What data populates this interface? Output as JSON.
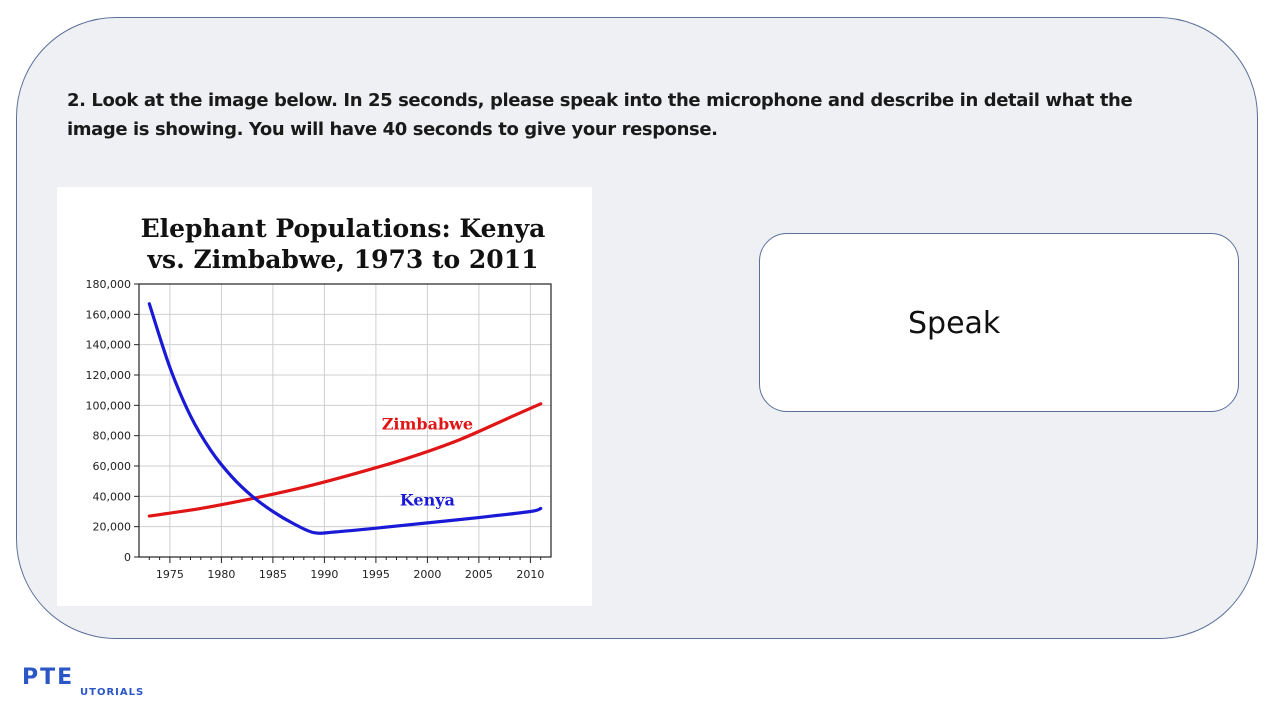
{
  "question": {
    "text": "2.  Look at the image below. In 25 seconds, please speak into the microphone and describe in detail what the image is showing. You will have 40 seconds to give your response."
  },
  "speak_button": {
    "label": "Speak"
  },
  "logo": {
    "text_main": "PTE",
    "text_sub": "UTORIALS"
  },
  "chart_data": {
    "type": "line",
    "title": [
      "Elephant Populations: Kenya",
      "vs. Zimbabwe, 1973 to 2011"
    ],
    "xlabel": "",
    "ylabel": "",
    "xlim": [
      1972,
      2012
    ],
    "ylim": [
      0,
      180000
    ],
    "x_ticks": [
      1975,
      1980,
      1985,
      1990,
      1995,
      2000,
      2005,
      2010
    ],
    "y_ticks": [
      0,
      20000,
      40000,
      60000,
      80000,
      100000,
      120000,
      140000,
      160000,
      180000
    ],
    "y_tick_labels": [
      "0",
      "20,000",
      "40,000",
      "60,000",
      "80,000",
      "100,000",
      "120,000",
      "140,000",
      "160,000",
      "180,000"
    ],
    "grid": true,
    "series": [
      {
        "name": "Zimbabwe",
        "color": "#e01515",
        "x": [
          1973,
          1978,
          1983,
          1988,
          1993,
          1998,
          2003,
          2008,
          2011
        ],
        "values": [
          27000,
          32000,
          38500,
          46000,
          55000,
          65000,
          77000,
          92000,
          101000
        ]
      },
      {
        "name": "Kenya",
        "color": "#1a1ad6",
        "x": [
          1973,
          1975,
          1977,
          1979,
          1981,
          1983,
          1985,
          1987,
          1989,
          1991,
          1995,
          2000,
          2005,
          2010,
          2011
        ],
        "values": [
          167000,
          125000,
          93000,
          70000,
          53000,
          40000,
          30000,
          22000,
          16000,
          16500,
          19000,
          22500,
          26000,
          30000,
          32000
        ]
      }
    ]
  }
}
